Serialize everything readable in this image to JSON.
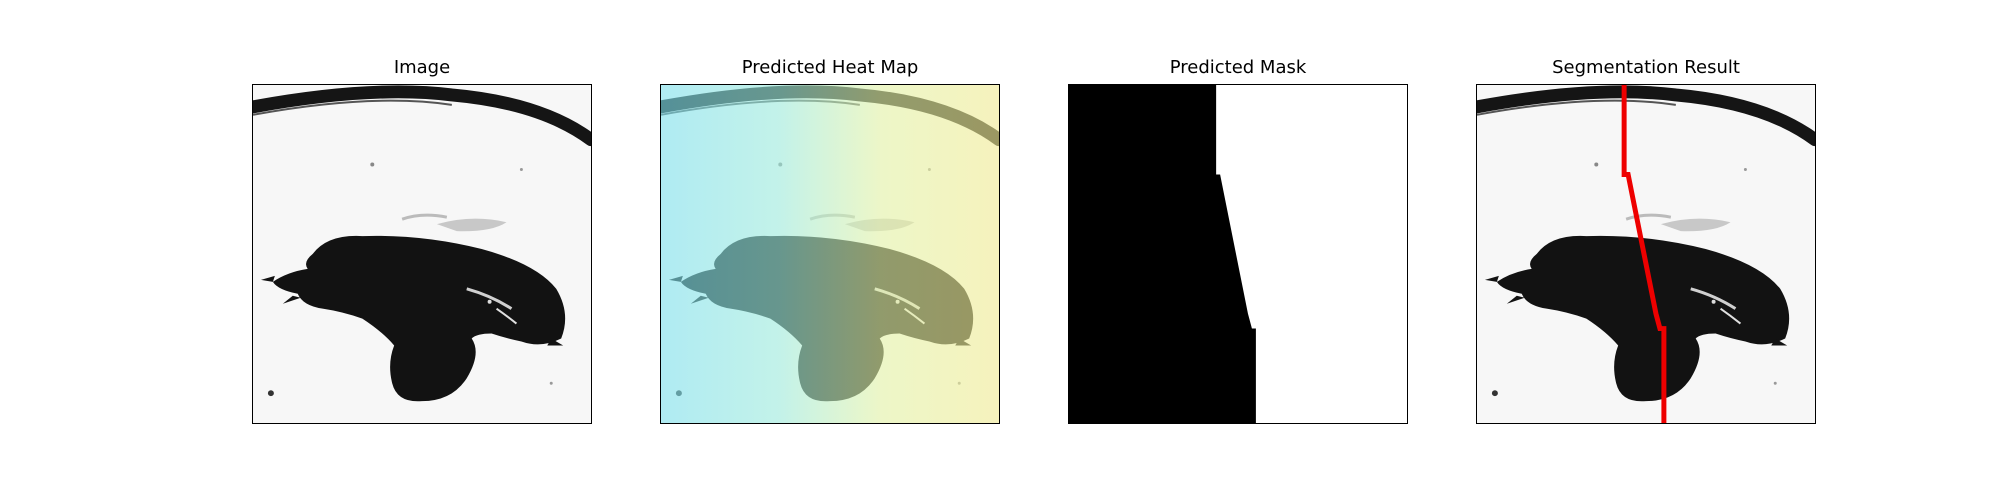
{
  "figure": {
    "background_color": "#ffffff",
    "panels": [
      {
        "title": "Image",
        "content": "grayscale-specimen-photo"
      },
      {
        "title": "Predicted Heat Map",
        "content": "heatmap-overlay",
        "colormap": [
          "#7fe3f0",
          "#a8f2dc",
          "#e9f6a6",
          "#f4ef98"
        ]
      },
      {
        "title": "Predicted Mask",
        "content": "binary-mask",
        "mask_colors": {
          "foreground": "#000000",
          "background": "#ffffff"
        }
      },
      {
        "title": "Segmentation Result",
        "content": "specimen-with-boundary",
        "boundary_color": "#ee0000"
      }
    ]
  }
}
